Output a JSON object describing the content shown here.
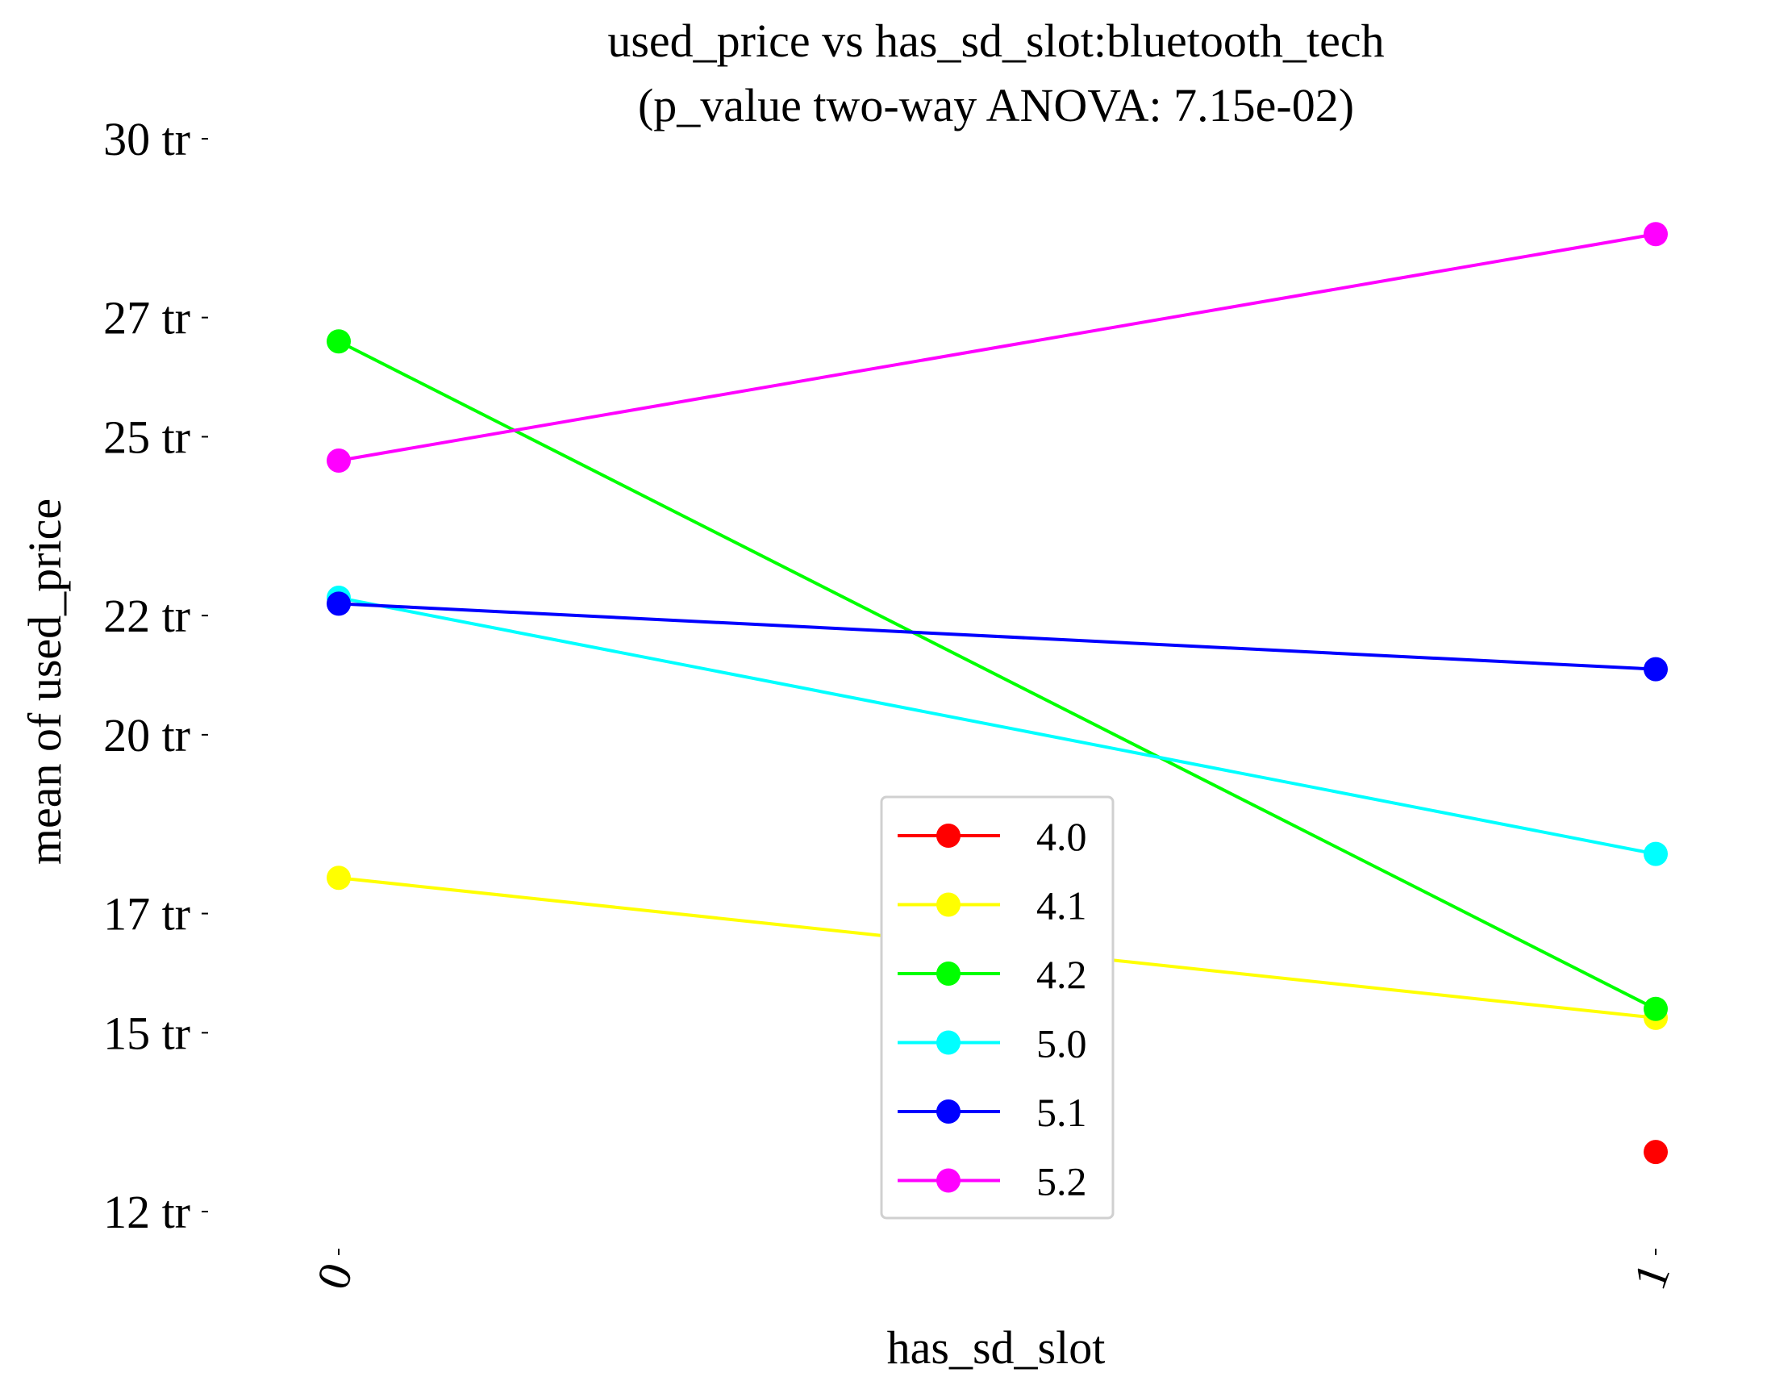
{
  "chart_data": {
    "type": "line",
    "title": "used_price vs has_sd_slot:bluetooth_tech",
    "subtitle": "(p_value two-way ANOVA: 7.15e-02)",
    "xlabel": "has_sd_slot",
    "ylabel": "mean of used_price",
    "categories": [
      "0",
      "1"
    ],
    "ylim": [
      11.5,
      30.5
    ],
    "yticks": [
      {
        "value": 12.0,
        "label": "12 tr"
      },
      {
        "value": 15.0,
        "label": "15 tr"
      },
      {
        "value": 17.0,
        "label": "17 tr"
      },
      {
        "value": 20.0,
        "label": "20 tr"
      },
      {
        "value": 22.0,
        "label": "22 tr"
      },
      {
        "value": 25.0,
        "label": "25 tr"
      },
      {
        "value": 27.0,
        "label": "27 tr"
      },
      {
        "value": 30.0,
        "label": "30 tr"
      }
    ],
    "grid": false,
    "legend_position": "bottom-center",
    "series": [
      {
        "name": "4.0",
        "color": "#ff0000",
        "values": [
          null,
          13.0
        ]
      },
      {
        "name": "4.1",
        "color": "#ffff00",
        "values": [
          17.6,
          15.25
        ]
      },
      {
        "name": "4.2",
        "color": "#00ff00",
        "values": [
          26.6,
          15.4
        ]
      },
      {
        "name": "5.0",
        "color": "#00ffff",
        "values": [
          22.3,
          18.0
        ]
      },
      {
        "name": "5.1",
        "color": "#0000ff",
        "values": [
          22.2,
          21.1
        ]
      },
      {
        "name": "5.2",
        "color": "#ff00ff",
        "values": [
          24.6,
          28.4
        ]
      }
    ]
  }
}
